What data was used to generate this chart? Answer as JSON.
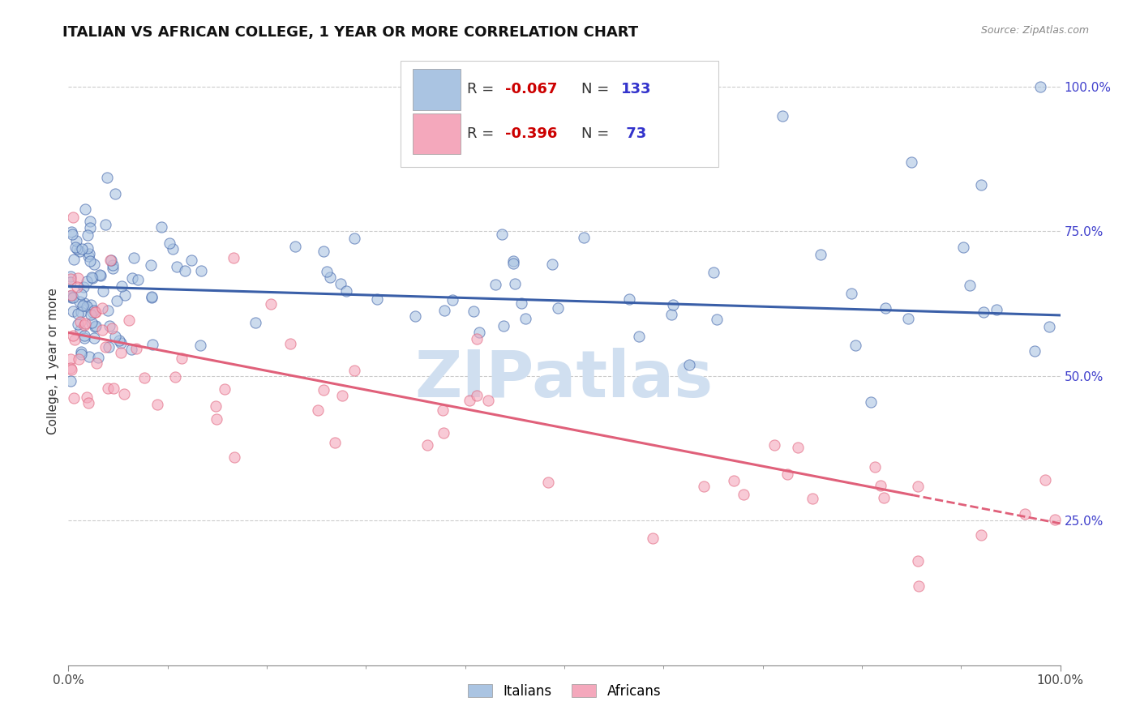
{
  "title": "ITALIAN VS AFRICAN COLLEGE, 1 YEAR OR MORE CORRELATION CHART",
  "source": "Source: ZipAtlas.com",
  "ylabel": "College, 1 year or more",
  "xlim": [
    0.0,
    1.0
  ],
  "ylim": [
    0.0,
    1.05
  ],
  "x_tick_labels": [
    "0.0%",
    "100.0%"
  ],
  "y_tick_labels": [
    "25.0%",
    "50.0%",
    "75.0%",
    "100.0%"
  ],
  "y_tick_positions": [
    0.25,
    0.5,
    0.75,
    1.0
  ],
  "italian_color": "#aac4e2",
  "african_color": "#f4a8bc",
  "italian_line_color": "#3a5fa8",
  "african_line_color": "#e0607a",
  "R_italian": -0.067,
  "N_italian": 133,
  "R_african": -0.396,
  "N_african": 73,
  "legend_R_color": "#cc0000",
  "legend_N_color": "#3333cc",
  "legend_text_color": "#333333",
  "watermark": "ZIPatlas",
  "watermark_color": "#d0dff0",
  "background_color": "#ffffff",
  "grid_color": "#cccccc",
  "title_fontsize": 13,
  "axis_fontsize": 11,
  "legend_fontsize": 13,
  "italian_line_intercept": 0.655,
  "italian_line_slope": -0.05,
  "african_line_intercept": 0.575,
  "african_line_slope": -0.33
}
